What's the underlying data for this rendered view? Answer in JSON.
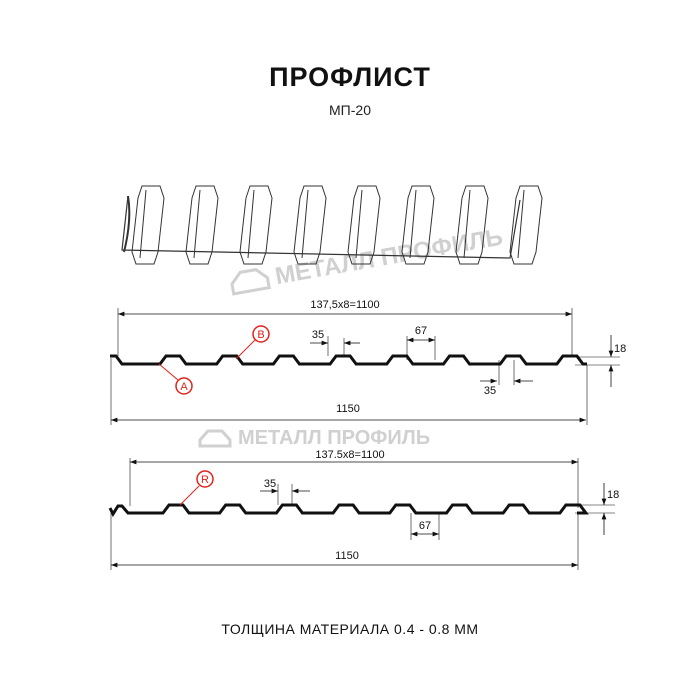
{
  "title": "ПРОФЛИСТ",
  "subtitle": "МП-20",
  "footer": "ТОЛЩИНА МАТЕРИАЛА 0.4 - 0.8 ММ",
  "watermark": "МЕТАЛЛ ПРОФИЛЬ",
  "profile1": {
    "dim_pitch": "137,5х8=1100",
    "dim_width": "1150",
    "dim_top": "35",
    "dim_bottom": "35",
    "dim_gap": "67",
    "dim_height": "18",
    "marker_a": "A",
    "marker_b": "B"
  },
  "profile2": {
    "dim_pitch": "137.5х8=1100",
    "dim_width": "1150",
    "dim_top": "35",
    "dim_gap": "67",
    "dim_height": "18",
    "marker_r": "R"
  },
  "colors": {
    "marker": "#e0231c",
    "line": "#111111",
    "watermark": "#c8c8c8"
  }
}
